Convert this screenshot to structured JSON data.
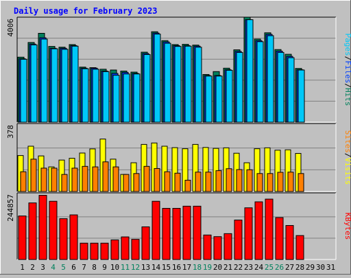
{
  "chart_data": [
    {
      "type": "bar",
      "title": "Daily usage for February 2023",
      "x_tick_labels": [
        "1",
        "2",
        "3",
        "4",
        "5",
        "6",
        "7",
        "8",
        "9",
        "10",
        "11",
        "12",
        "13",
        "14",
        "15",
        "16",
        "17",
        "18",
        "19",
        "20",
        "21",
        "22",
        "23",
        "24",
        "25",
        "26",
        "27",
        "28",
        "29",
        "30",
        "31"
      ],
      "weekend_days": [
        4,
        5,
        11,
        12,
        18,
        19,
        25,
        26
      ],
      "max_label": "4006",
      "ylim": [
        0,
        4006
      ],
      "legend": [
        "Pages",
        "Files",
        "Hits"
      ],
      "series": [
        {
          "name": "Hits",
          "color": "#00805c",
          "values": [
            2480,
            3040,
            3390,
            2890,
            2860,
            2960,
            2100,
            2080,
            2020,
            1990,
            1950,
            1910,
            2670,
            3450,
            3110,
            2960,
            2970,
            2940,
            1820,
            1930,
            2060,
            2760,
            4006,
            3170,
            3410,
            2770,
            2590,
            2050,
            0,
            0,
            0
          ]
        },
        {
          "name": "Files",
          "color": "#0040ff",
          "values": [
            2420,
            2980,
            3220,
            2820,
            2820,
            2920,
            2060,
            2060,
            1950,
            1860,
            1900,
            1860,
            2620,
            3400,
            3060,
            2920,
            2920,
            2900,
            1780,
            1780,
            2000,
            2700,
            3910,
            3110,
            3350,
            2710,
            2510,
            2000,
            0,
            0,
            0
          ]
        },
        {
          "name": "Pages",
          "color": "#00c8f8",
          "values": [
            2400,
            2950,
            3170,
            2800,
            2780,
            2900,
            2040,
            2020,
            1930,
            1790,
            1840,
            1840,
            2580,
            3360,
            3010,
            2890,
            2900,
            2860,
            1760,
            1760,
            1980,
            2660,
            3910,
            3070,
            3300,
            2660,
            2460,
            1990,
            0,
            0,
            0
          ]
        }
      ]
    },
    {
      "type": "bar",
      "max_label": "378",
      "ylim": [
        0,
        378
      ],
      "legend": [
        "Sites",
        "Visits"
      ],
      "series": [
        {
          "name": "Visits",
          "color": "#ffff00",
          "values": [
            200,
            252,
            198,
            137,
            175,
            185,
            214,
            237,
            292,
            180,
            95,
            160,
            262,
            270,
            252,
            244,
            238,
            262,
            245,
            240,
            243,
            213,
            160,
            238,
            243,
            230,
            232,
            212,
            0,
            0,
            0
          ]
        },
        {
          "name": "Sites",
          "color": "#ff8000",
          "values": [
            110,
            180,
            130,
            130,
            95,
            130,
            140,
            137,
            165,
            137,
            95,
            100,
            140,
            128,
            110,
            102,
            63,
            108,
            108,
            116,
            127,
            122,
            121,
            100,
            100,
            107,
            108,
            100,
            0,
            0,
            0
          ]
        }
      ]
    },
    {
      "type": "bar",
      "max_label": "244857",
      "ylim": [
        0,
        244857
      ],
      "legend": [
        "KBytes"
      ],
      "series": [
        {
          "name": "KBytes",
          "color": "#ff0000",
          "values": [
            160000,
            208000,
            236000,
            214000,
            150000,
            164000,
            60000,
            60000,
            60000,
            72000,
            83000,
            74000,
            120000,
            214000,
            188000,
            188000,
            196000,
            196000,
            90000,
            84000,
            95000,
            145000,
            190000,
            212000,
            222000,
            154000,
            125000,
            88000,
            0,
            0,
            0
          ]
        }
      ]
    }
  ]
}
